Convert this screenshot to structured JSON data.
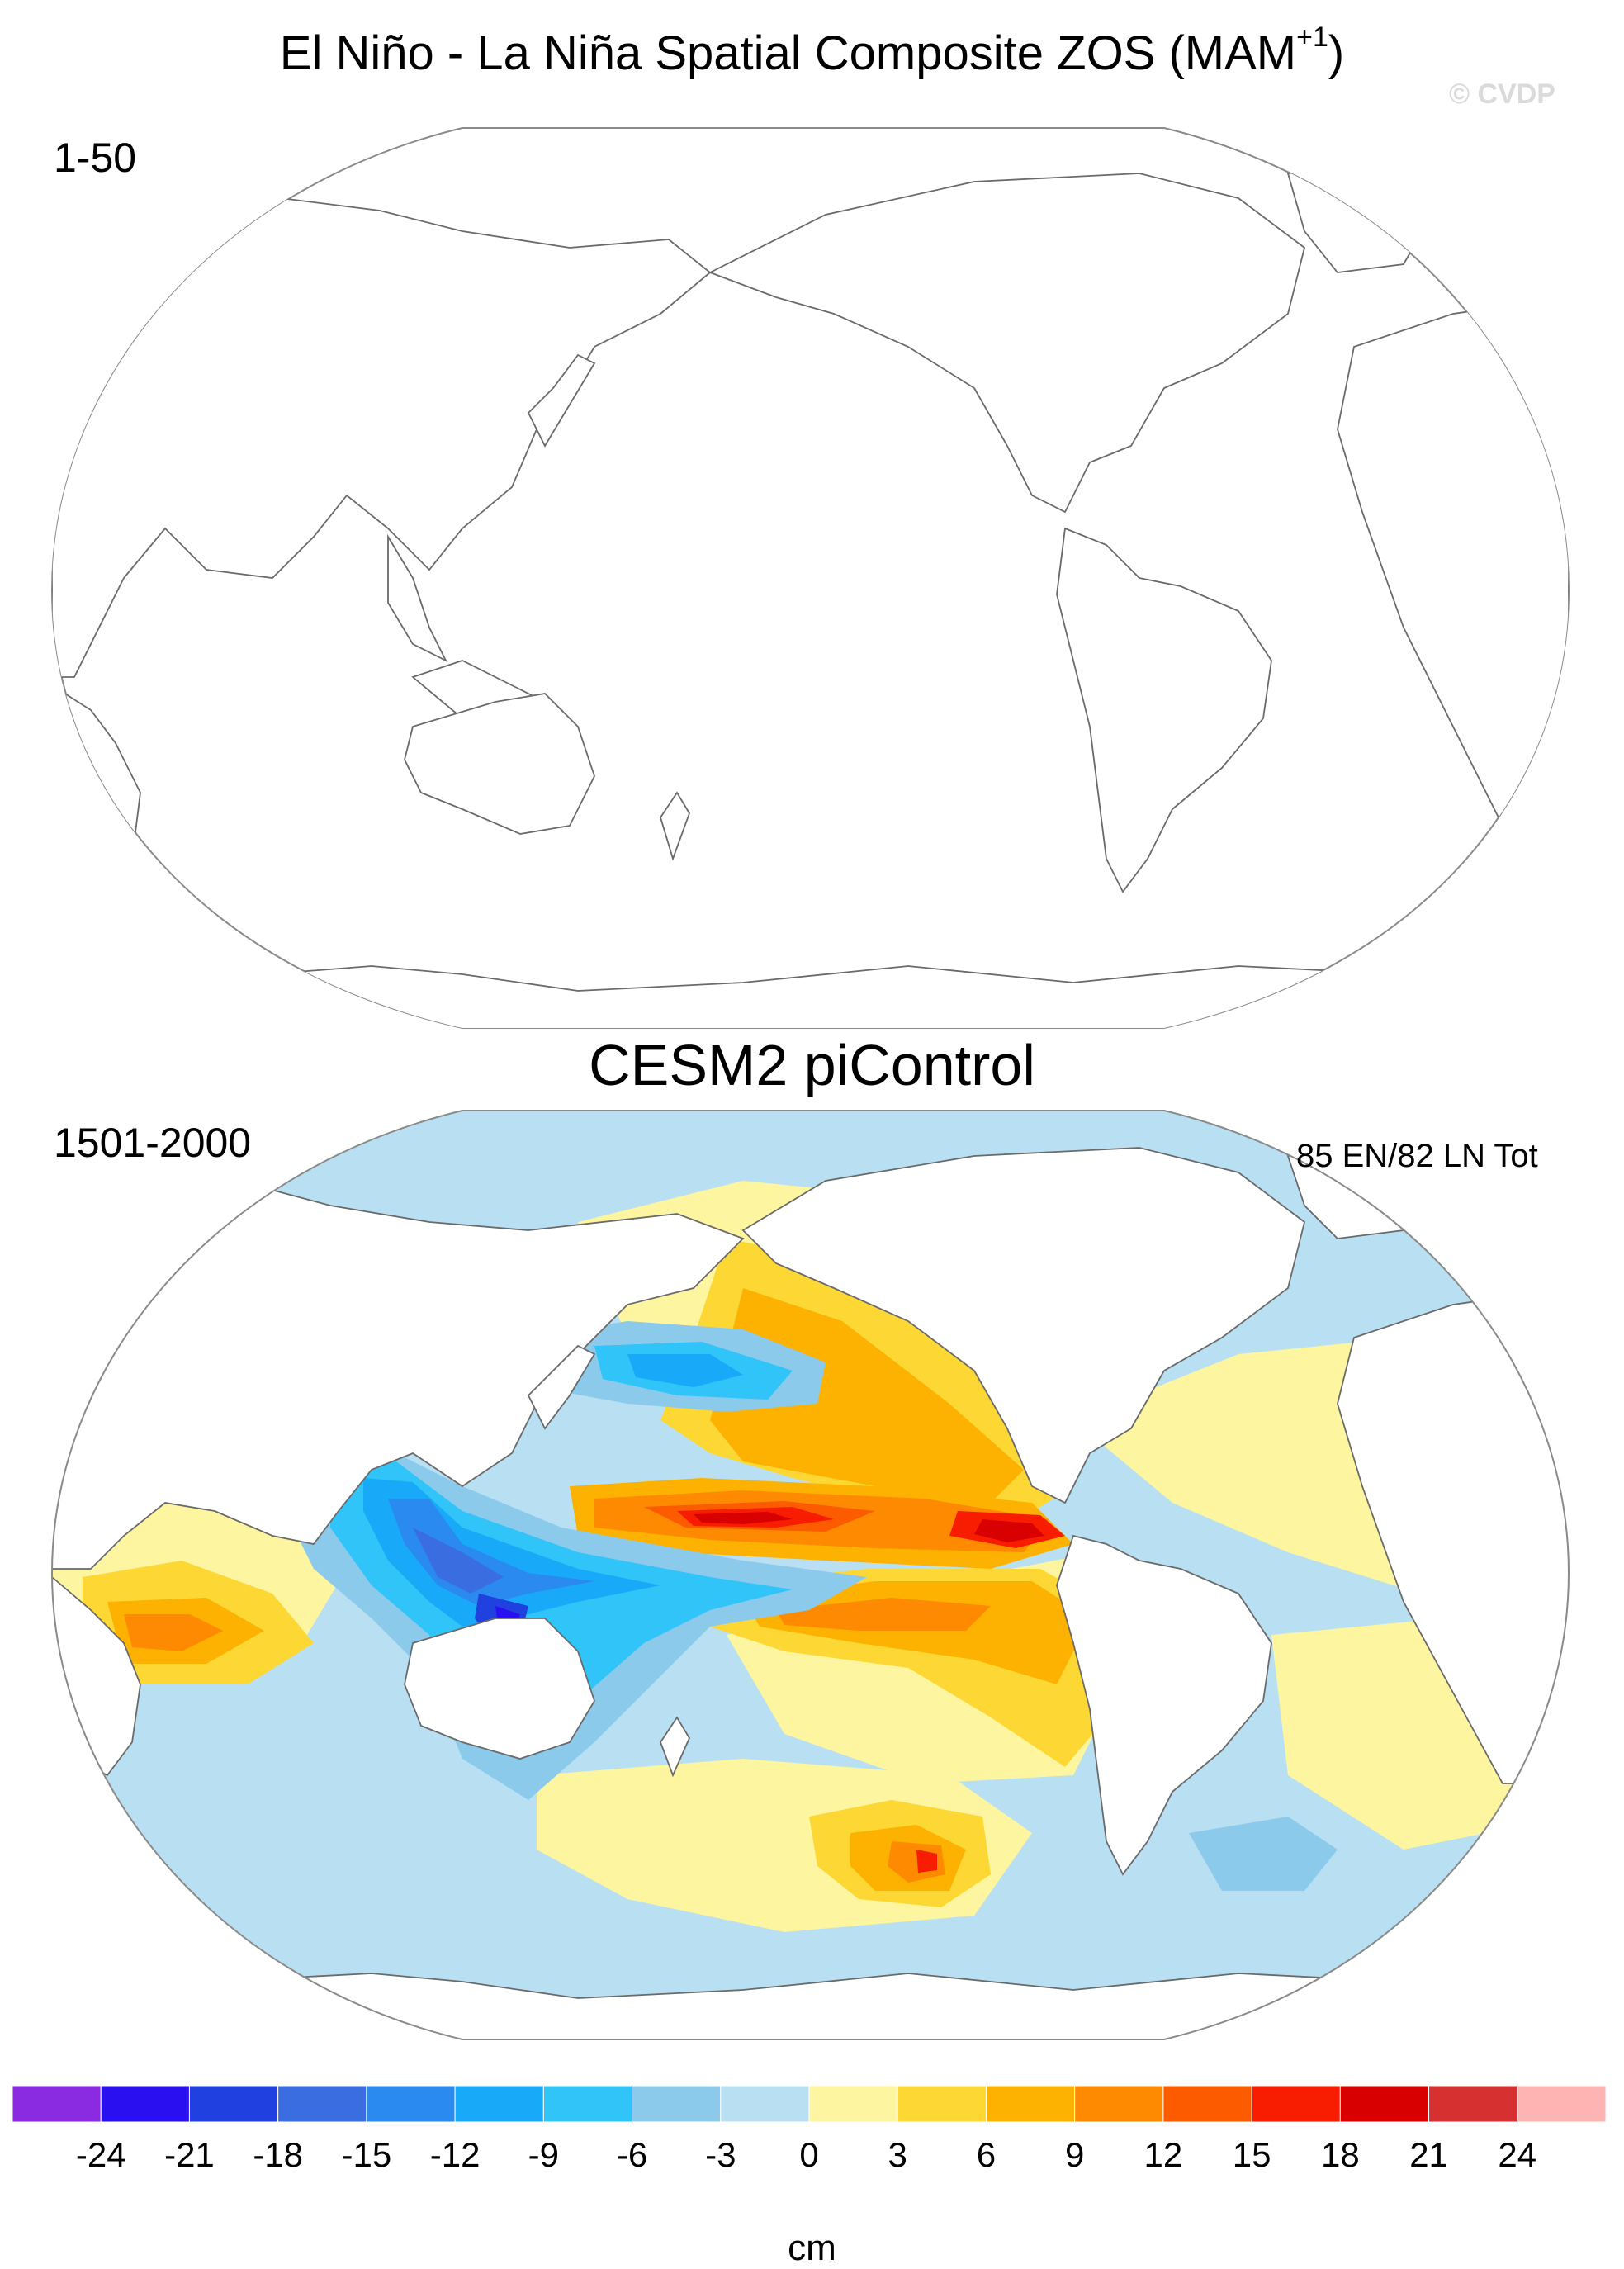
{
  "title": {
    "text": "El Niño - La Niña Spatial Composite ZOS (MAM",
    "superscript": "+1",
    "close": ")"
  },
  "watermark": "© CVDP",
  "panels": [
    {
      "label": "1-50",
      "type": "empty-map"
    },
    {
      "title": "CESM2 piControl",
      "label": "1501-2000",
      "events": "85 EN/82 LN Tot"
    }
  ],
  "colorbar": {
    "units": "cm",
    "tick_labels": [
      "-24",
      "-21",
      "-18",
      "-15",
      "-12",
      "-9",
      "-6",
      "-3",
      "0",
      "3",
      "6",
      "9",
      "12",
      "15",
      "18",
      "21",
      "24"
    ],
    "colors": [
      "#8a2be2",
      "#2a10f0",
      "#2040e0",
      "#3a6ee0",
      "#2a8af0",
      "#18aaf8",
      "#30c4f8",
      "#8ccaec",
      "#b8e0f2",
      "#fdf5a0",
      "#fdd835",
      "#fdb100",
      "#fd8a00",
      "#fd5b00",
      "#f81d00",
      "#d80000",
      "#d63030",
      "#ffb4b4"
    ]
  },
  "map_data": {
    "projection": "robinson",
    "central_longitude": 180,
    "variable": "ZOS",
    "season": "MAM+1",
    "contour_levels": [
      -24,
      -21,
      -18,
      -15,
      -12,
      -9,
      -6,
      -3,
      0,
      3,
      6,
      9,
      12,
      15,
      18,
      21,
      24
    ]
  }
}
